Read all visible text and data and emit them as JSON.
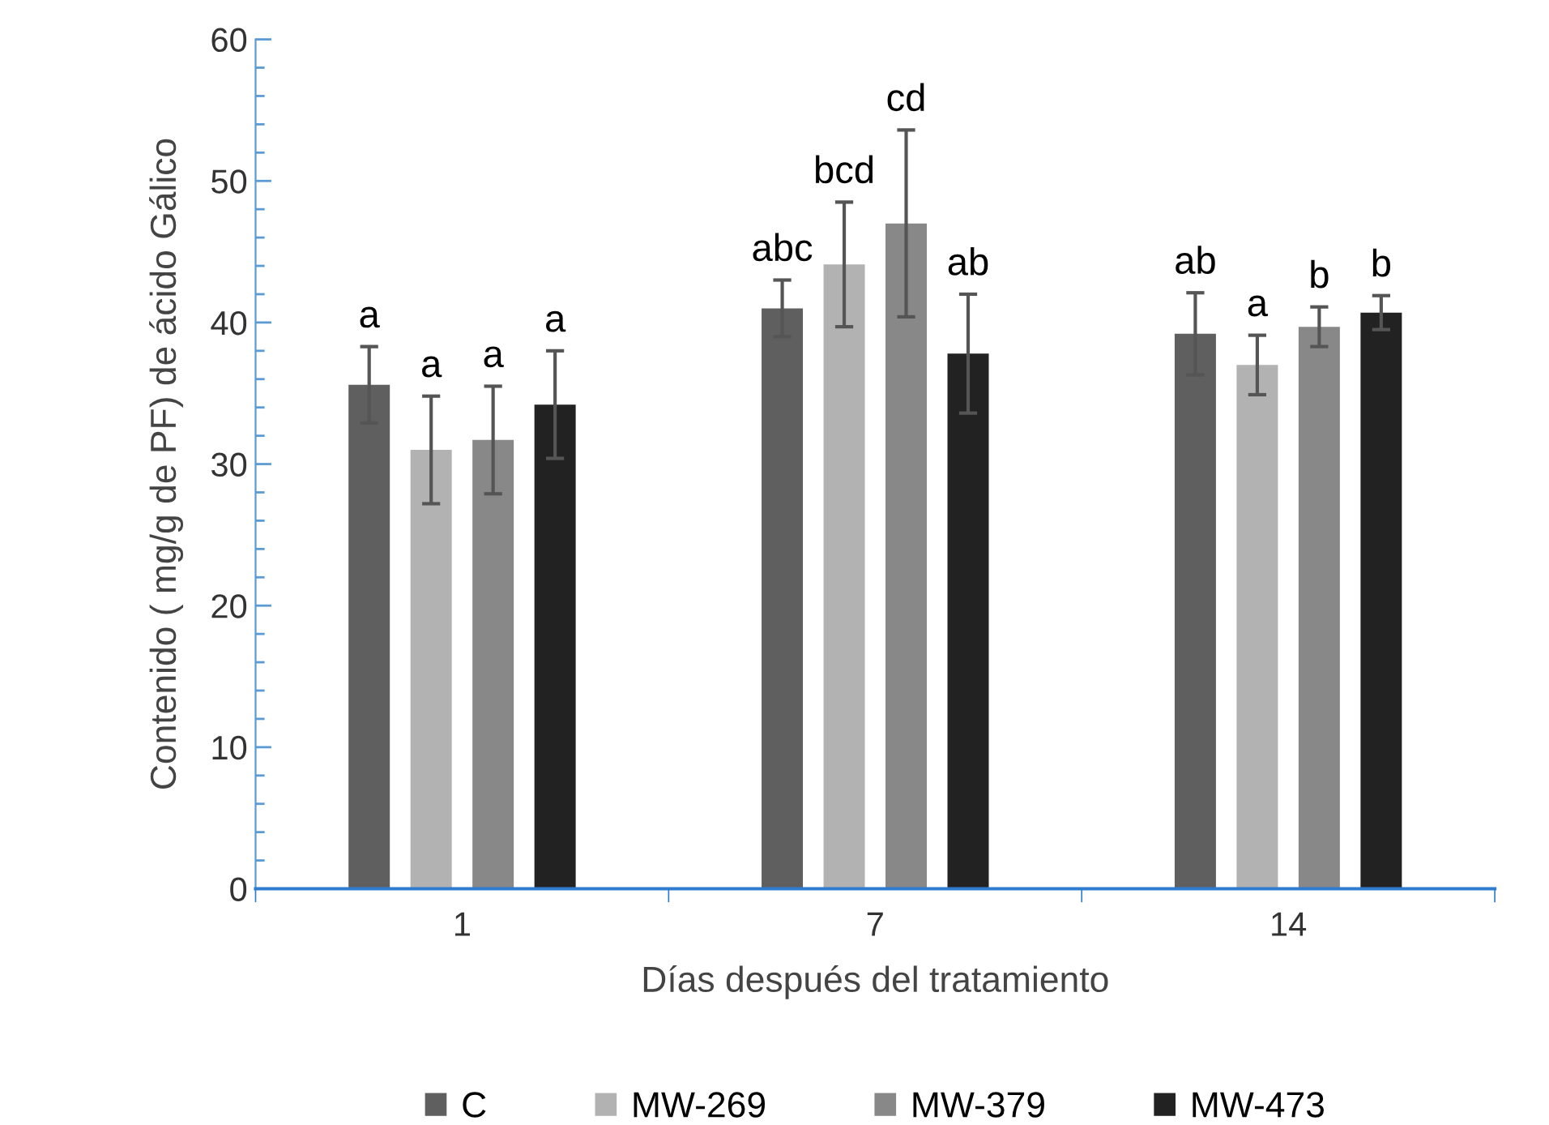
{
  "chart_data": {
    "type": "bar",
    "xlabel": "Días después del tratamiento",
    "ylabel": "Contenido ( mg/g de PF) de ácido Gálico",
    "categories": [
      "1",
      "7",
      "14"
    ],
    "series": [
      {
        "name": "C",
        "color": "#5f5f5f",
        "values": [
          35.6,
          41.0,
          39.2
        ],
        "errors": [
          2.7,
          2.0,
          2.9
        ],
        "value_labels": [
          "a",
          "abc",
          "ab"
        ]
      },
      {
        "name": "MW-269",
        "color": "#b2b2b2",
        "values": [
          31.0,
          44.1,
          37.0
        ],
        "errors": [
          3.8,
          4.4,
          2.1
        ],
        "value_labels": [
          "a",
          "bcd",
          "a"
        ]
      },
      {
        "name": "MW-379",
        "color": "#888888",
        "values": [
          31.7,
          47.0,
          39.7
        ],
        "errors": [
          3.8,
          6.6,
          1.4
        ],
        "value_labels": [
          "a",
          "cd",
          "b"
        ]
      },
      {
        "name": "MW-473",
        "color": "#222222",
        "values": [
          34.2,
          37.8,
          40.7
        ],
        "errors": [
          3.8,
          4.2,
          1.2
        ],
        "value_labels": [
          "a",
          "ab",
          "b"
        ]
      }
    ],
    "ylim": [
      0,
      60
    ],
    "yticks": [
      0,
      10,
      20,
      30,
      40,
      50,
      60
    ],
    "grid": false,
    "legend": "bottom"
  }
}
